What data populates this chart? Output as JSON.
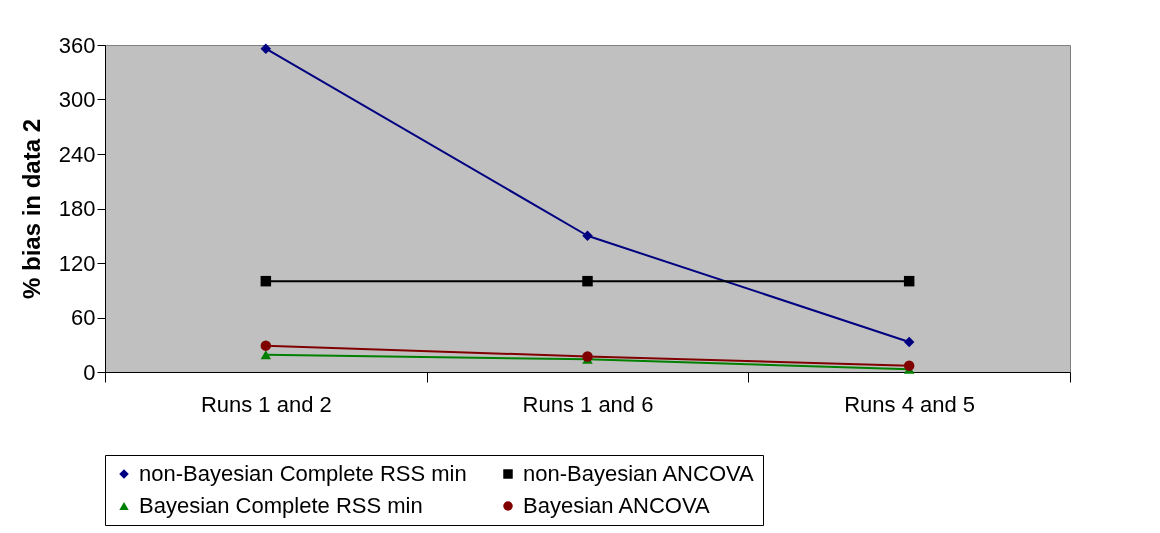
{
  "chart_data": {
    "type": "line",
    "ylabel": "% bias in data 2",
    "categories": [
      "Runs 1 and 2",
      "Runs 1 and 6",
      "Runs 4 and 5"
    ],
    "series": [
      {
        "name": "non-Bayesian Complete RSS min",
        "color": "#000080",
        "marker": "diamond",
        "values": [
          356,
          150,
          33
        ]
      },
      {
        "name": "non-Bayesian ANCOVA",
        "color": "#000000",
        "marker": "square",
        "values": [
          100,
          100,
          100
        ]
      },
      {
        "name": "Bayesian Complete RSS min",
        "color": "#008000",
        "marker": "triangle",
        "values": [
          19,
          14,
          3
        ]
      },
      {
        "name": "Bayesian ANCOVA",
        "color": "#800000",
        "marker": "circle",
        "values": [
          29,
          17,
          7
        ]
      }
    ],
    "ylim": [
      0,
      360
    ],
    "yticks": [
      0,
      60,
      120,
      180,
      240,
      300,
      360
    ],
    "grid": false,
    "legend": "bottom",
    "line_style": "solid"
  }
}
